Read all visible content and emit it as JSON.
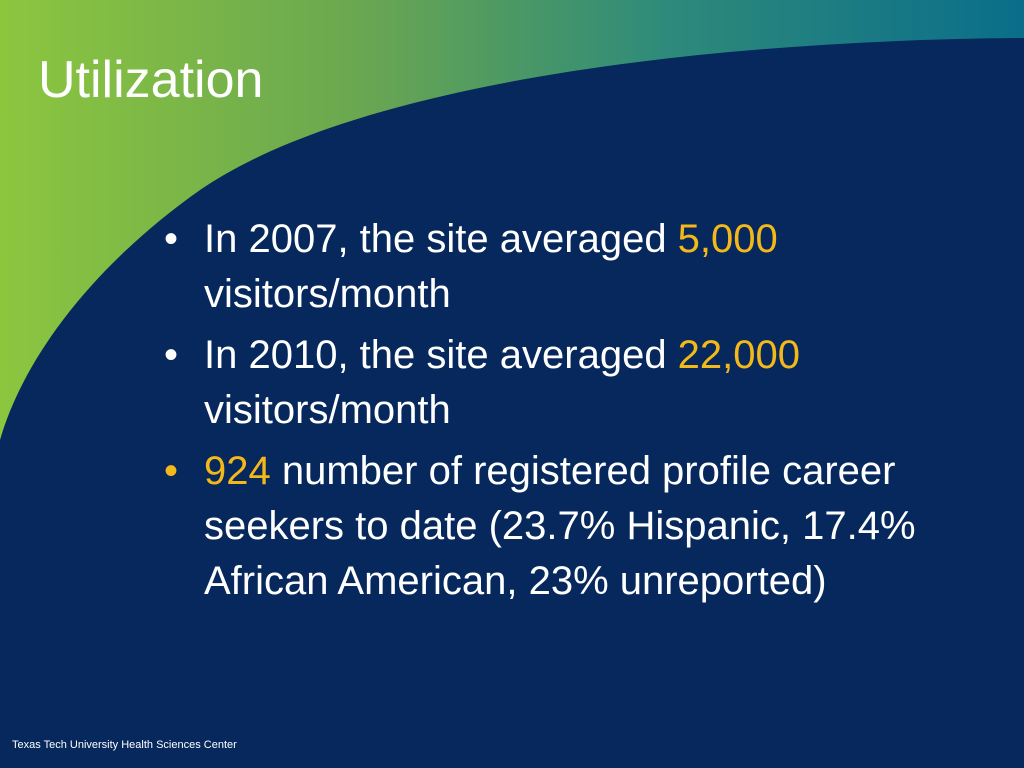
{
  "colors": {
    "background": "#06285c",
    "accent": "#f3b81a",
    "text": "#ffffff",
    "swoosh_green": "#8cc63f",
    "swoosh_teal": "#1c7a8c"
  },
  "slide": {
    "title": "Utilization",
    "bullets": [
      {
        "prefix": "In 2007, the site averaged ",
        "highlight": "5,000",
        "suffix": " visitors/month",
        "marker": "•"
      },
      {
        "prefix": "In 2010, the site averaged ",
        "highlight": "22,000",
        "suffix": " visitors/month",
        "marker": "•"
      },
      {
        "prefix": "",
        "highlight": "924",
        "suffix": " number of registered profile career seekers to date (23.7% Hispanic, 17.4% African American, 23% unreported)",
        "marker": "•"
      }
    ],
    "footer": "Texas Tech University Health Sciences Center"
  }
}
